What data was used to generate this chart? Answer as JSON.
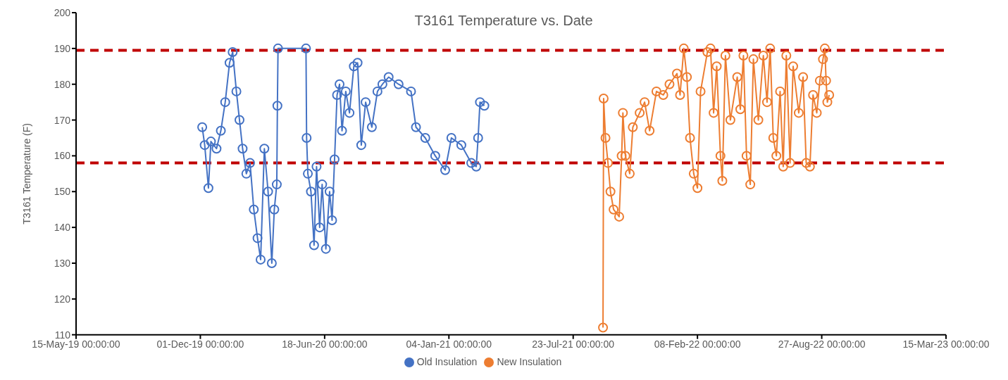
{
  "chart_data": {
    "type": "line",
    "title": "T3161 Temperature vs. Date",
    "ylabel": "T3161 Temperature (F)",
    "xlim": [
      "2019-05-15",
      "2023-03-15"
    ],
    "xticks": [
      {
        "value": "2019-05-15",
        "label": "15-May-19 00:00:00"
      },
      {
        "value": "2019-12-01",
        "label": "01-Dec-19 00:00:00"
      },
      {
        "value": "2020-06-18",
        "label": "18-Jun-20 00:00:00"
      },
      {
        "value": "2021-01-04",
        "label": "04-Jan-21 00:00:00"
      },
      {
        "value": "2021-07-23",
        "label": "23-Jul-21 00:00:00"
      },
      {
        "value": "2022-02-08",
        "label": "08-Feb-22 00:00:00"
      },
      {
        "value": "2022-08-27",
        "label": "27-Aug-22 00:00:00"
      },
      {
        "value": "2023-03-15",
        "label": "15-Mar-23 00:00:00"
      }
    ],
    "ylim": [
      110,
      200
    ],
    "yticks": [
      110,
      120,
      130,
      140,
      150,
      160,
      170,
      180,
      190,
      200
    ],
    "legend": "bottom",
    "marker": "circle",
    "line_style": "solid",
    "ref_lines": [
      {
        "axis": "y",
        "value": 189.5,
        "label": null,
        "color": "#c00000",
        "line_style": "dashed"
      },
      {
        "axis": "y",
        "value": 158,
        "label": null,
        "color": "#c00000",
        "line_style": "dashed"
      }
    ],
    "series": [
      {
        "name": "Old Insulation",
        "color": "#4472c4",
        "x": [
          "2019-12-04",
          "2019-12-08",
          "2019-12-14",
          "2019-12-18",
          "2019-12-27",
          "2020-01-03",
          "2020-01-10",
          "2020-01-17",
          "2020-01-22",
          "2020-01-28",
          "2020-02-02",
          "2020-02-07",
          "2020-02-13",
          "2020-02-19",
          "2020-02-25",
          "2020-03-02",
          "2020-03-07",
          "2020-03-13",
          "2020-03-19",
          "2020-03-25",
          "2020-03-29",
          "2020-04-02",
          "2020-04-03",
          "2020-04-04",
          "2020-05-19",
          "2020-05-20",
          "2020-05-22",
          "2020-05-27",
          "2020-06-01",
          "2020-06-05",
          "2020-06-10",
          "2020-06-14",
          "2020-06-20",
          "2020-06-26",
          "2020-06-30",
          "2020-07-04",
          "2020-07-08",
          "2020-07-12",
          "2020-07-16",
          "2020-07-22",
          "2020-07-28",
          "2020-08-04",
          "2020-08-10",
          "2020-08-16",
          "2020-08-23",
          "2020-09-02",
          "2020-09-11",
          "2020-09-19",
          "2020-09-29",
          "2020-10-15",
          "2020-11-04",
          "2020-11-12",
          "2020-11-27",
          "2020-12-13",
          "2020-12-29",
          "2021-01-08",
          "2021-01-24",
          "2021-02-09",
          "2021-02-17",
          "2021-02-20",
          "2021-02-23",
          "2021-03-02"
        ],
        "values": [
          168,
          163,
          151,
          164,
          162,
          167,
          175,
          186,
          189,
          178,
          170,
          162,
          155,
          158,
          145,
          137,
          131,
          162,
          150,
          130,
          145,
          152,
          174,
          190,
          190,
          165,
          155,
          150,
          135,
          157,
          140,
          152,
          134,
          150,
          142,
          159,
          177,
          180,
          167,
          178,
          172,
          185,
          186,
          163,
          175,
          168,
          178,
          180,
          182,
          180,
          178,
          168,
          165,
          160,
          156,
          165,
          163,
          158,
          157,
          165,
          175,
          174
        ]
      },
      {
        "name": "New Insulation",
        "color": "#ed7d31",
        "x": [
          "2021-09-09",
          "2021-09-10",
          "2021-09-13",
          "2021-09-17",
          "2021-09-21",
          "2021-09-26",
          "2021-10-05",
          "2021-10-09",
          "2021-10-11",
          "2021-10-15",
          "2021-10-22",
          "2021-10-27",
          "2021-11-07",
          "2021-11-15",
          "2021-11-23",
          "2021-12-04",
          "2021-12-15",
          "2021-12-25",
          "2022-01-06",
          "2022-01-11",
          "2022-01-17",
          "2022-01-22",
          "2022-01-27",
          "2022-02-02",
          "2022-02-08",
          "2022-02-13",
          "2022-02-24",
          "2022-03-01",
          "2022-03-06",
          "2022-03-11",
          "2022-03-17",
          "2022-03-20",
          "2022-03-25",
          "2022-04-02",
          "2022-04-13",
          "2022-04-18",
          "2022-04-23",
          "2022-04-28",
          "2022-05-04",
          "2022-05-09",
          "2022-05-17",
          "2022-05-25",
          "2022-05-31",
          "2022-06-05",
          "2022-06-10",
          "2022-06-15",
          "2022-06-21",
          "2022-06-26",
          "2022-07-01",
          "2022-07-07",
          "2022-07-12",
          "2022-07-21",
          "2022-07-28",
          "2022-08-02",
          "2022-08-08",
          "2022-08-13",
          "2022-08-19",
          "2022-08-24",
          "2022-08-29",
          "2022-09-01",
          "2022-09-03",
          "2022-09-05",
          "2022-09-08"
        ],
        "values": [
          112,
          176,
          165,
          158,
          150,
          145,
          143,
          160,
          172,
          160,
          155,
          168,
          172,
          175,
          167,
          178,
          177,
          180,
          183,
          177,
          190,
          182,
          165,
          155,
          151,
          178,
          189,
          190,
          172,
          185,
          160,
          153,
          188,
          170,
          182,
          173,
          188,
          160,
          152,
          187,
          170,
          188,
          175,
          190,
          165,
          160,
          178,
          157,
          188,
          158,
          185,
          172,
          182,
          158,
          157,
          177,
          172,
          181,
          187,
          190,
          181,
          175,
          177
        ]
      }
    ]
  }
}
